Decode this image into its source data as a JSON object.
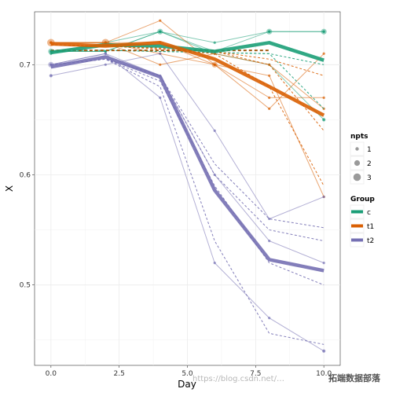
{
  "chart_data": {
    "type": "line",
    "xlabel": "Day",
    "ylabel": "X",
    "xlim": [
      -0.6,
      10.6
    ],
    "ylim": [
      0.427,
      0.748
    ],
    "x_ticks": [
      0.0,
      2.5,
      5.0,
      7.5,
      10.0
    ],
    "x_tick_labels": [
      "0.0",
      "2.5",
      "5.0",
      "7.5",
      "10.0"
    ],
    "y_ticks": [
      0.5,
      0.6,
      0.7
    ],
    "y_tick_labels": [
      "0.5",
      "0.6",
      "0.7"
    ],
    "colors": {
      "c": "#1b9e77",
      "t1": "#d95f02",
      "t2": "#7570b3"
    },
    "legend_npts": {
      "title": "npts",
      "items": [
        "1",
        "2",
        "3"
      ]
    },
    "legend_group": {
      "title": "Group",
      "items": [
        "c",
        "t1",
        "t2"
      ]
    },
    "series": [
      {
        "group": "c",
        "kind": "individual",
        "x": [
          0,
          2,
          4,
          6,
          8,
          10
        ],
        "y": [
          0.712,
          0.712,
          0.73,
          0.712,
          0.73,
          0.73
        ]
      },
      {
        "group": "c",
        "kind": "individual",
        "x": [
          0,
          2,
          4,
          6,
          8,
          10
        ],
        "y": [
          0.71,
          0.72,
          0.73,
          0.72,
          0.73,
          0.73
        ]
      },
      {
        "group": "c",
        "kind": "individual",
        "x": [
          0,
          2,
          4,
          6,
          8,
          10
        ],
        "y": [
          0.712,
          0.712,
          0.73,
          0.71,
          0.7,
          0.65
        ]
      },
      {
        "group": "c",
        "kind": "fitted",
        "x": [
          0,
          2,
          4,
          6,
          8,
          10
        ],
        "y": [
          0.713,
          0.713,
          0.712,
          0.711,
          0.71,
          0.66
        ]
      },
      {
        "group": "c",
        "kind": "fitted",
        "x": [
          0,
          2,
          4,
          6,
          8,
          10
        ],
        "y": [
          0.713,
          0.713,
          0.712,
          0.711,
          0.71,
          0.7
        ]
      },
      {
        "group": "c",
        "kind": "mean",
        "x": [
          0,
          2,
          4,
          6,
          8,
          10
        ],
        "y": [
          0.711,
          0.718,
          0.717,
          0.712,
          0.72,
          0.704
        ]
      },
      {
        "group": "t1",
        "kind": "individual",
        "x": [
          0,
          2,
          4,
          6,
          8,
          10
        ],
        "y": [
          0.72,
          0.72,
          0.74,
          0.7,
          0.66,
          0.71
        ]
      },
      {
        "group": "t1",
        "kind": "individual",
        "x": [
          0,
          2,
          4,
          6,
          8,
          10
        ],
        "y": [
          0.72,
          0.72,
          0.72,
          0.7,
          0.67,
          0.67
        ]
      },
      {
        "group": "t1",
        "kind": "individual",
        "x": [
          0,
          2,
          4,
          6,
          8,
          10
        ],
        "y": [
          0.72,
          0.72,
          0.71,
          0.7,
          0.69,
          0.58
        ]
      },
      {
        "group": "t1",
        "kind": "individual",
        "x": [
          0,
          2,
          4,
          6,
          8,
          10
        ],
        "y": [
          0.72,
          0.72,
          0.7,
          0.71,
          0.7,
          0.66
        ]
      },
      {
        "group": "t1",
        "kind": "fitted",
        "x": [
          0,
          2,
          4,
          6,
          8,
          10
        ],
        "y": [
          0.718,
          0.717,
          0.715,
          0.712,
          0.705,
          0.69
        ]
      },
      {
        "group": "t1",
        "kind": "fitted",
        "x": [
          0,
          2,
          4,
          6,
          8,
          10
        ],
        "y": [
          0.718,
          0.717,
          0.715,
          0.712,
          0.7,
          0.64
        ]
      },
      {
        "group": "t1",
        "kind": "fitted",
        "x": [
          0,
          2,
          4,
          6,
          8,
          10
        ],
        "y": [
          0.718,
          0.717,
          0.714,
          0.71,
          0.68,
          0.59
        ]
      },
      {
        "group": "t1",
        "kind": "mean",
        "x": [
          0,
          2,
          4,
          6,
          8,
          10
        ],
        "y": [
          0.719,
          0.717,
          0.72,
          0.705,
          0.68,
          0.654
        ]
      },
      {
        "group": "t2",
        "kind": "individual",
        "x": [
          0,
          2,
          4,
          6,
          8,
          10
        ],
        "y": [
          0.69,
          0.7,
          0.71,
          0.64,
          0.56,
          0.58
        ]
      },
      {
        "group": "t2",
        "kind": "individual",
        "x": [
          0,
          2,
          4,
          6,
          8,
          10
        ],
        "y": [
          0.7,
          0.71,
          0.69,
          0.6,
          0.54,
          0.52
        ]
      },
      {
        "group": "t2",
        "kind": "individual",
        "x": [
          0,
          2,
          4,
          6,
          8,
          10
        ],
        "y": [
          0.7,
          0.71,
          0.67,
          0.52,
          0.47,
          0.44
        ]
      },
      {
        "group": "t2",
        "kind": "fitted",
        "x": [
          0,
          2,
          4,
          6,
          8,
          10
        ],
        "y": [
          0.7,
          0.705,
          0.69,
          0.61,
          0.56,
          0.552
        ]
      },
      {
        "group": "t2",
        "kind": "fitted",
        "x": [
          0,
          2,
          4,
          6,
          8,
          10
        ],
        "y": [
          0.7,
          0.705,
          0.69,
          0.6,
          0.55,
          0.54
        ]
      },
      {
        "group": "t2",
        "kind": "fitted",
        "x": [
          0,
          2,
          4,
          6,
          8,
          10
        ],
        "y": [
          0.7,
          0.705,
          0.685,
          0.59,
          0.52,
          0.5
        ]
      },
      {
        "group": "t2",
        "kind": "fitted",
        "x": [
          0,
          2,
          4,
          6,
          8,
          10
        ],
        "y": [
          0.7,
          0.705,
          0.68,
          0.54,
          0.456,
          0.446
        ]
      },
      {
        "group": "t2",
        "kind": "mean",
        "x": [
          0,
          2,
          4,
          6,
          8,
          10
        ],
        "y": [
          0.698,
          0.707,
          0.689,
          0.586,
          0.523,
          0.513
        ]
      }
    ],
    "points": [
      {
        "group": "c",
        "x": 0,
        "y": 0.712,
        "npts": 2
      },
      {
        "group": "c",
        "x": 4,
        "y": 0.73,
        "npts": 2
      },
      {
        "group": "c",
        "x": 8,
        "y": 0.73,
        "npts": 2
      },
      {
        "group": "c",
        "x": 10,
        "y": 0.73,
        "npts": 2
      },
      {
        "group": "c",
        "x": 10,
        "y": 0.65,
        "npts": 1
      },
      {
        "group": "t1",
        "x": 0,
        "y": 0.72,
        "npts": 3
      },
      {
        "group": "t1",
        "x": 2,
        "y": 0.72,
        "npts": 3
      },
      {
        "group": "t1",
        "x": 6,
        "y": 0.7,
        "npts": 2
      },
      {
        "group": "t2",
        "x": 0,
        "y": 0.7,
        "npts": 2
      },
      {
        "group": "t2",
        "x": 0,
        "y": 0.69,
        "npts": 1
      },
      {
        "group": "t2",
        "x": 10,
        "y": 0.44,
        "npts": 1
      }
    ]
  },
  "watermark": {
    "url": "https://blog.csdn.net/…",
    "brand": "拓端数据部落"
  }
}
